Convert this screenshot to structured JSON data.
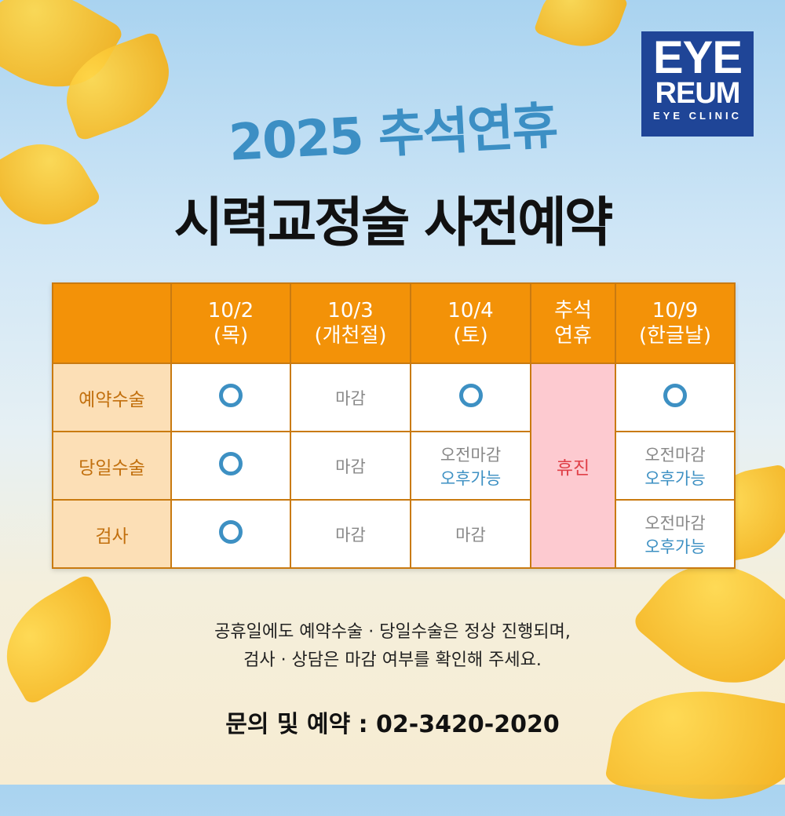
{
  "logo": {
    "line1": "EYE",
    "line2": "REUM",
    "line3": "EYE CLINIC"
  },
  "title": "2025 추석연휴",
  "subtitle": "시력교정술 사전예약",
  "table": {
    "headers": [
      {
        "l1": "10/2",
        "l2": "(목)"
      },
      {
        "l1": "10/3",
        "l2": "(개천절)"
      },
      {
        "l1": "10/4",
        "l2": "(토)"
      },
      {
        "l1": "추석",
        "l2": "연휴"
      },
      {
        "l1": "10/9",
        "l2": "(한글날)"
      }
    ],
    "rows": [
      {
        "label": "예약수술",
        "c1": "O",
        "c2": "마감",
        "c3": "O",
        "c5": "O"
      },
      {
        "label": "당일수술",
        "c1": "O",
        "c2": "마감",
        "c3a": "오전마감",
        "c3b": "오후가능",
        "c5a": "오전마감",
        "c5b": "오후가능"
      },
      {
        "label": "검사",
        "c1": "O",
        "c2": "마감",
        "c3": "마감",
        "c5a": "오전마감",
        "c5b": "오후가능"
      }
    ],
    "holiday": "휴진"
  },
  "note": {
    "line1": "공휴일에도 예약수술 · 당일수술은 정상 진행되며,",
    "line2": "검사 · 상담은 마감 여부를 확인해 주세요."
  },
  "contact": "문의 및 예약 : 02-3420-2020",
  "colors": {
    "header": "#f39208",
    "accent_blue": "#3d90c3",
    "holiday": "#e04048",
    "logo": "#1f4597"
  }
}
